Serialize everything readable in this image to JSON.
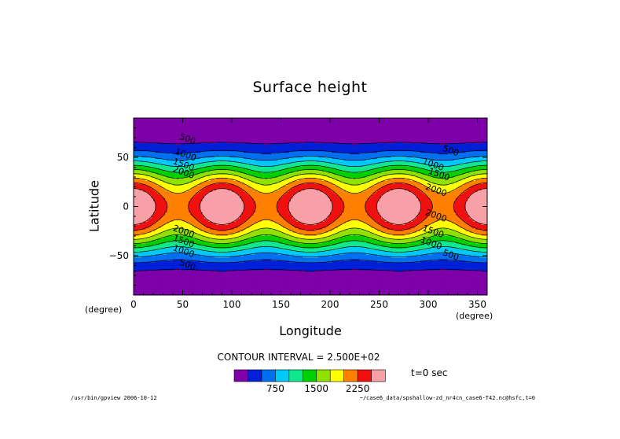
{
  "chart_data": {
    "type": "contour",
    "title": "Surface height",
    "xlabel": "Longitude",
    "ylabel": "Latitude",
    "xunit": "(degree)",
    "yunit": "(degree)",
    "xlim": [
      0,
      360
    ],
    "ylim": [
      -90,
      90
    ],
    "xticks": [
      0,
      50,
      100,
      150,
      200,
      250,
      300,
      350
    ],
    "yticks": [
      -50,
      0,
      50
    ],
    "contour_interval_text": "CONTOUR INTERVAL = 2.500E+02",
    "colorbar_ticks": [
      750,
      1500,
      2250
    ],
    "colorbar_colors": [
      "#7d00a8",
      "#0020d8",
      "#0070f0",
      "#00c8f8",
      "#10e890",
      "#00d000",
      "#90e000",
      "#ffff00",
      "#ff8000",
      "#f01010",
      "#f8a0a8"
    ],
    "levels": [
      250,
      500,
      750,
      1000,
      1250,
      1500,
      1750,
      2000,
      2250,
      2500
    ],
    "contour_labels": [
      {
        "text": "500",
        "x": 54,
        "y": 66
      },
      {
        "text": "1000",
        "x": 52,
        "y": 50
      },
      {
        "text": "1500",
        "x": 50,
        "y": 40
      },
      {
        "text": "2000",
        "x": 50,
        "y": 32
      },
      {
        "text": "2000",
        "x": 50,
        "y": -28
      },
      {
        "text": "1500",
        "x": 50,
        "y": -38
      },
      {
        "text": "1000",
        "x": 50,
        "y": -48
      },
      {
        "text": "500",
        "x": 54,
        "y": -62
      },
      {
        "text": "500",
        "x": 322,
        "y": 54
      },
      {
        "text": "1000",
        "x": 304,
        "y": 40
      },
      {
        "text": "1500",
        "x": 310,
        "y": 30
      },
      {
        "text": "2000",
        "x": 307,
        "y": 14
      },
      {
        "text": "2000",
        "x": 307,
        "y": -12
      },
      {
        "text": "1500",
        "x": 304,
        "y": -28
      },
      {
        "text": "1000",
        "x": 302,
        "y": -40
      },
      {
        "text": "500",
        "x": 322,
        "y": -52
      }
    ],
    "time_label": "t=0 sec"
  },
  "footer": {
    "left": "/usr/bin/gpview  2006-10-12",
    "right": "~/case6_data/spshallow-zd_nr4cn_case6-T42.nc@hsfc,t=0"
  }
}
